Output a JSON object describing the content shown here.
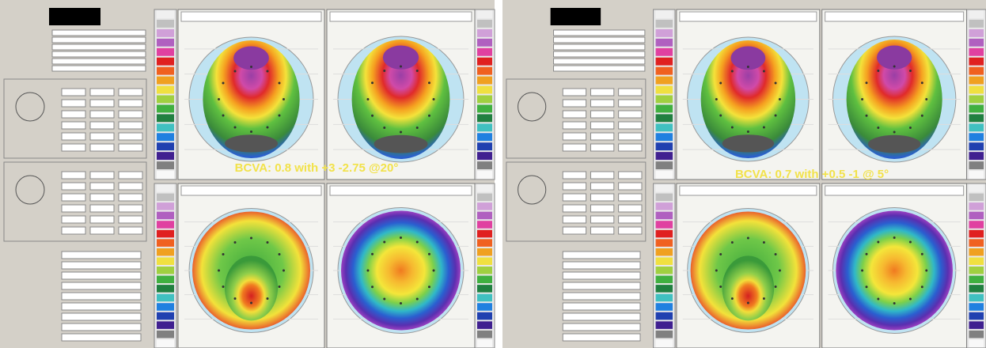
{
  "panels": [
    {
      "annotation": "BCVA: 0.8 with +3 -2.75 @20°"
    },
    {
      "annotation": "BCVA: 0.7 with +0.5 -1 @ 5°"
    }
  ]
}
